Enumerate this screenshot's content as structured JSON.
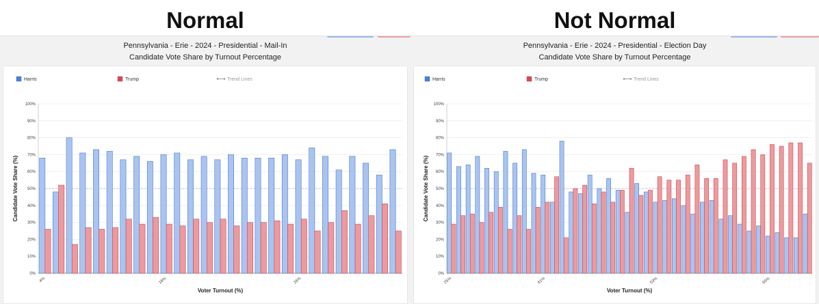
{
  "headings": {
    "left": "Normal",
    "right": "Not Normal"
  },
  "colors": {
    "harris_fill": "#a9c4f0",
    "harris_stroke": "#4a78cf",
    "trump_fill": "#ec9a9e",
    "trump_stroke": "#c94a54",
    "grid": "#ececec",
    "fifty_line": "#b5b5b5"
  },
  "chart_data": [
    {
      "type": "bar",
      "title": "Pennsylvania - Erie - 2024 - Presidential - Mail-In",
      "subtitle": "Candidate Vote Share by Turnout Percentage",
      "xlabel": "Voter Turnout (%)",
      "ylabel": "Candidate Vote Share (%)",
      "ylim": [
        0,
        100
      ],
      "yticks": [
        "0%",
        "10%",
        "20%",
        "30%",
        "40%",
        "50%",
        "60%",
        "70%",
        "80%",
        "90%",
        "100%"
      ],
      "reference_line": 50,
      "legend": {
        "harris": "Harris",
        "trump": "Trump",
        "trend": "Trend Lines"
      },
      "x_tick_labels": [
        {
          "index": 0,
          "label": "4%"
        },
        {
          "index": 9,
          "label": "18%"
        },
        {
          "index": 19,
          "label": "26%"
        }
      ],
      "series": [
        {
          "name": "Harris",
          "values": [
            68,
            48,
            80,
            71,
            73,
            72,
            67,
            69,
            66,
            70,
            71,
            67,
            69,
            67,
            70,
            68,
            68,
            68,
            70,
            67,
            74,
            69,
            61,
            69,
            65,
            58,
            73
          ]
        },
        {
          "name": "Trump",
          "values": [
            26,
            52,
            17,
            27,
            26,
            27,
            32,
            29,
            33,
            29,
            28,
            32,
            30,
            32,
            28,
            30,
            30,
            31,
            29,
            32,
            25,
            30,
            37,
            29,
            34,
            41,
            25
          ]
        }
      ]
    },
    {
      "type": "bar",
      "title": "Pennsylvania - Erie - 2024 - Presidential - Election Day",
      "subtitle": "Candidate Vote Share by Turnout Percentage",
      "xlabel": "Voter Turnout (%)",
      "ylabel": "Candidate Vote Share (%)",
      "ylim": [
        0,
        100
      ],
      "yticks": [
        "0%",
        "10%",
        "20%",
        "30%",
        "40%",
        "50%",
        "60%",
        "70%",
        "80%",
        "90%",
        "100%"
      ],
      "reference_line": 50,
      "legend": {
        "harris": "Harris",
        "trump": "Trump",
        "trend": "Trend Lines"
      },
      "x_tick_labels": [
        {
          "index": 0,
          "label": "25%"
        },
        {
          "index": 10,
          "label": "41%"
        },
        {
          "index": 22,
          "label": "53%"
        },
        {
          "index": 34,
          "label": "65%"
        }
      ],
      "series": [
        {
          "name": "Harris",
          "values": [
            71,
            63,
            64,
            69,
            62,
            60,
            72,
            65,
            73,
            59,
            58,
            42,
            78,
            48,
            47,
            58,
            50,
            56,
            49,
            36,
            53,
            48,
            42,
            43,
            44,
            40,
            35,
            42,
            43,
            32,
            34,
            29,
            25,
            28,
            22,
            24,
            21,
            21,
            35
          ]
        },
        {
          "name": "Trump",
          "values": [
            29,
            34,
            35,
            30,
            36,
            39,
            26,
            34,
            26,
            39,
            42,
            57,
            21,
            50,
            52,
            41,
            48,
            42,
            49,
            62,
            46,
            49,
            57,
            55,
            55,
            58,
            64,
            56,
            56,
            67,
            65,
            69,
            73,
            70,
            76,
            75,
            77,
            77,
            65
          ]
        }
      ]
    }
  ]
}
